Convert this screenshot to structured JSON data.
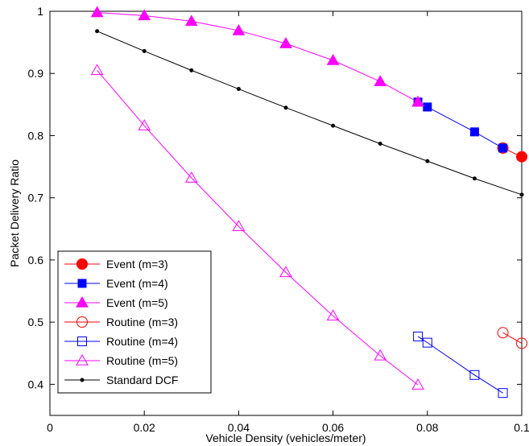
{
  "chart_data": {
    "type": "line",
    "title": "",
    "xlabel": "Vehicle Density (vehicles/meter)",
    "ylabel": "Packet Delivery Ratio",
    "xlim": [
      0,
      0.1
    ],
    "ylim": [
      0.35,
      1.0
    ],
    "xticks": [
      0,
      0.02,
      0.04,
      0.06,
      0.08,
      0.1
    ],
    "xtick_labels": [
      "0",
      "0.02",
      "0.04",
      "0.06",
      "0.08",
      "0.1"
    ],
    "yticks": [
      0.4,
      0.5,
      0.6,
      0.7,
      0.8,
      0.9,
      1.0
    ],
    "ytick_labels": [
      "0.4",
      "0.5",
      "0.6",
      "0.7",
      "0.8",
      "0.9",
      "1"
    ],
    "grid": false,
    "legend_position": "bottom-left",
    "series": [
      {
        "name": "Event (m=3)",
        "color": "#ff0000",
        "marker": "circle",
        "filled": true,
        "x": [
          0.096,
          0.1
        ],
        "y": [
          0.78,
          0.766
        ]
      },
      {
        "name": "Event (m=4)",
        "color": "#0000ff",
        "marker": "square",
        "filled": true,
        "x": [
          0.078,
          0.08,
          0.09,
          0.096
        ],
        "y": [
          0.854,
          0.846,
          0.806,
          0.78
        ]
      },
      {
        "name": "Event (m=5)",
        "color": "#ff00ff",
        "marker": "triangle",
        "filled": true,
        "x": [
          0.01,
          0.02,
          0.03,
          0.04,
          0.05,
          0.06,
          0.07,
          0.078
        ],
        "y": [
          0.998,
          0.993,
          0.984,
          0.969,
          0.948,
          0.921,
          0.887,
          0.854
        ]
      },
      {
        "name": "Routine (m=3)",
        "color": "#ff0000",
        "marker": "circle",
        "filled": false,
        "x": [
          0.096,
          0.1
        ],
        "y": [
          0.483,
          0.466
        ]
      },
      {
        "name": "Routine (m=4)",
        "color": "#0000ff",
        "marker": "square",
        "filled": false,
        "x": [
          0.078,
          0.08,
          0.09,
          0.096
        ],
        "y": [
          0.477,
          0.467,
          0.415,
          0.386
        ]
      },
      {
        "name": "Routine (m=5)",
        "color": "#ff00ff",
        "marker": "triangle",
        "filled": false,
        "x": [
          0.01,
          0.02,
          0.03,
          0.04,
          0.05,
          0.06,
          0.07,
          0.078
        ],
        "y": [
          0.905,
          0.816,
          0.732,
          0.654,
          0.58,
          0.51,
          0.446,
          0.399
        ]
      },
      {
        "name": "Standard DCF",
        "color": "#000000",
        "marker": "dot",
        "filled": true,
        "x": [
          0.01,
          0.02,
          0.03,
          0.04,
          0.05,
          0.06,
          0.07,
          0.08,
          0.09,
          0.1
        ],
        "y": [
          0.968,
          0.936,
          0.905,
          0.875,
          0.845,
          0.816,
          0.787,
          0.759,
          0.731,
          0.705
        ]
      }
    ]
  }
}
